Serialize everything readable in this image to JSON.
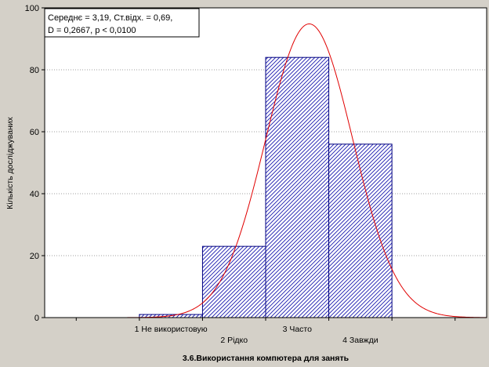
{
  "chart_data": {
    "type": "bar",
    "title": "",
    "xlabel": "3.6.Використання компютера для занять",
    "ylabel": "Кількість досліджуваних",
    "ylim": [
      0,
      100
    ],
    "yticks": [
      0,
      20,
      40,
      60,
      80,
      100
    ],
    "grid": true,
    "categories": [
      "1 Не використовую",
      "2 Рідко",
      "3 Часто",
      "4 Завжди"
    ],
    "values": [
      1,
      23,
      84,
      56
    ],
    "stats_box": {
      "line1": "Середнє = 3,19, Ст.відх. = 0,69,",
      "line2": "D = 0,2667, p < 0,0100"
    },
    "normal_curve": {
      "mean": 3.19,
      "sd": 0.69,
      "n": 164,
      "bin_width": 1
    },
    "colors": {
      "bar_fill": "#ffffff",
      "bar_hatch": "#1a1ab0",
      "bar_edge": "#00007f",
      "curve": "#e00000",
      "grid": "#808080",
      "plot_bg": "#ffffff",
      "page_bg": "#d4d0c8"
    }
  }
}
